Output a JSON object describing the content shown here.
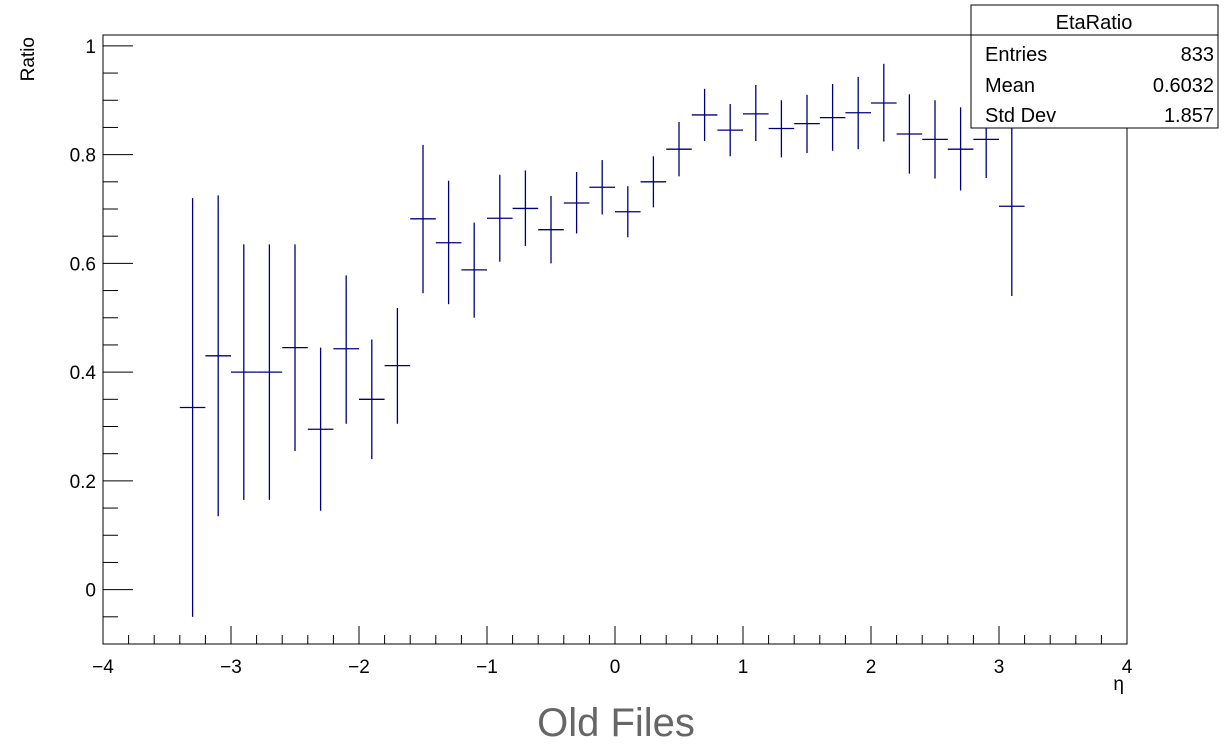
{
  "chart_data": {
    "type": "scatter",
    "title": "",
    "xlabel": "η",
    "ylabel": "Ratio",
    "xlim": [
      -4,
      4
    ],
    "ylim": [
      -0.1,
      1.02
    ],
    "x_ticks": [
      "−4",
      "−3",
      "−2",
      "−1",
      "0",
      "1",
      "2",
      "3",
      "4"
    ],
    "y_ticks": [
      "0",
      "0.2",
      "0.4",
      "0.6",
      "0.8",
      "1"
    ],
    "bin_half_width": 0.1,
    "grid": false,
    "color": "#00007f",
    "points": [
      {
        "x": -3.3,
        "y": 0.335,
        "lo": -0.05,
        "hi": 0.72
      },
      {
        "x": -3.1,
        "y": 0.43,
        "lo": 0.135,
        "hi": 0.725
      },
      {
        "x": -2.9,
        "y": 0.4,
        "lo": 0.165,
        "hi": 0.635
      },
      {
        "x": -2.7,
        "y": 0.4,
        "lo": 0.165,
        "hi": 0.635
      },
      {
        "x": -2.5,
        "y": 0.445,
        "lo": 0.255,
        "hi": 0.635
      },
      {
        "x": -2.3,
        "y": 0.295,
        "lo": 0.145,
        "hi": 0.445
      },
      {
        "x": -2.1,
        "y": 0.443,
        "lo": 0.305,
        "hi": 0.578
      },
      {
        "x": -1.9,
        "y": 0.35,
        "lo": 0.24,
        "hi": 0.46
      },
      {
        "x": -1.7,
        "y": 0.412,
        "lo": 0.305,
        "hi": 0.518
      },
      {
        "x": -1.5,
        "y": 0.682,
        "lo": 0.545,
        "hi": 0.818
      },
      {
        "x": -1.3,
        "y": 0.638,
        "lo": 0.525,
        "hi": 0.752
      },
      {
        "x": -1.1,
        "y": 0.588,
        "lo": 0.5,
        "hi": 0.675
      },
      {
        "x": -0.9,
        "y": 0.683,
        "lo": 0.603,
        "hi": 0.763
      },
      {
        "x": -0.7,
        "y": 0.701,
        "lo": 0.632,
        "hi": 0.771
      },
      {
        "x": -0.5,
        "y": 0.662,
        "lo": 0.6,
        "hi": 0.724
      },
      {
        "x": -0.3,
        "y": 0.711,
        "lo": 0.655,
        "hi": 0.768
      },
      {
        "x": -0.1,
        "y": 0.74,
        "lo": 0.69,
        "hi": 0.79
      },
      {
        "x": 0.1,
        "y": 0.695,
        "lo": 0.648,
        "hi": 0.742
      },
      {
        "x": 0.3,
        "y": 0.75,
        "lo": 0.703,
        "hi": 0.797
      },
      {
        "x": 0.5,
        "y": 0.81,
        "lo": 0.76,
        "hi": 0.86
      },
      {
        "x": 0.7,
        "y": 0.873,
        "lo": 0.825,
        "hi": 0.921
      },
      {
        "x": 0.9,
        "y": 0.845,
        "lo": 0.797,
        "hi": 0.893
      },
      {
        "x": 1.1,
        "y": 0.875,
        "lo": 0.825,
        "hi": 0.928
      },
      {
        "x": 1.3,
        "y": 0.848,
        "lo": 0.795,
        "hi": 0.9
      },
      {
        "x": 1.5,
        "y": 0.857,
        "lo": 0.803,
        "hi": 0.91
      },
      {
        "x": 1.7,
        "y": 0.868,
        "lo": 0.807,
        "hi": 0.93
      },
      {
        "x": 1.9,
        "y": 0.877,
        "lo": 0.81,
        "hi": 0.943
      },
      {
        "x": 2.1,
        "y": 0.895,
        "lo": 0.824,
        "hi": 0.967
      },
      {
        "x": 2.3,
        "y": 0.838,
        "lo": 0.765,
        "hi": 0.911
      },
      {
        "x": 2.5,
        "y": 0.828,
        "lo": 0.756,
        "hi": 0.9
      },
      {
        "x": 2.7,
        "y": 0.81,
        "lo": 0.734,
        "hi": 0.887
      },
      {
        "x": 2.9,
        "y": 0.828,
        "lo": 0.757,
        "hi": 0.9
      },
      {
        "x": 3.1,
        "y": 0.705,
        "lo": 0.54,
        "hi": 0.87
      }
    ]
  },
  "stats_box": {
    "title": "EtaRatio",
    "rows": [
      {
        "label": "Entries",
        "value": "833"
      },
      {
        "label": "Mean",
        "value": "0.6032"
      },
      {
        "label": "Std Dev",
        "value": "1.857"
      }
    ]
  },
  "caption": "Old Files"
}
